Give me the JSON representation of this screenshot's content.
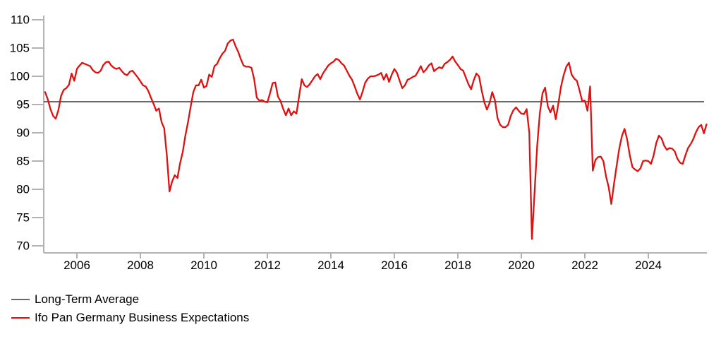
{
  "chart_data": {
    "type": "line",
    "title": "",
    "xlabel": "",
    "ylabel": "",
    "grid": false,
    "legend_position": "bottom-left",
    "x_axis": {
      "tick_years": [
        2006,
        2008,
        2010,
        2012,
        2014,
        2016,
        2018,
        2020,
        2022,
        2024
      ],
      "range_start": "2005-01",
      "range_end": "2025-11"
    },
    "y_axis": {
      "ticks": [
        70,
        75,
        80,
        85,
        90,
        95,
        100,
        105,
        110
      ],
      "ylim": [
        70,
        110
      ]
    },
    "series": [
      {
        "name": "Long-Term Average",
        "type": "constant-line",
        "value": 95.5,
        "color": "#696969"
      },
      {
        "name": "Ifo Pan Germany Business Expectations",
        "type": "monthly-line",
        "color": "#e01010",
        "start_year": 2005,
        "start_month": 1,
        "end_year": 2025,
        "end_month": 11,
        "values": [
          97.2,
          95.9,
          94.2,
          93.0,
          92.5,
          94.0,
          96.5,
          97.6,
          97.9,
          98.5,
          100.5,
          99.2,
          101.3,
          101.9,
          102.4,
          102.2,
          102.0,
          101.8,
          101.1,
          100.7,
          100.6,
          101.0,
          102.0,
          102.5,
          102.6,
          101.9,
          101.5,
          101.3,
          101.5,
          100.9,
          100.4,
          100.2,
          100.8,
          101.0,
          100.4,
          99.8,
          99.1,
          98.4,
          98.2,
          97.4,
          96.2,
          95.1,
          93.9,
          94.3,
          91.9,
          90.8,
          86.0,
          79.6,
          81.4,
          82.5,
          82.0,
          84.6,
          86.6,
          89.5,
          91.9,
          94.6,
          97.2,
          98.4,
          98.4,
          99.4,
          98.0,
          98.3,
          100.3,
          99.9,
          101.8,
          102.2,
          103.2,
          104.0,
          104.5,
          105.8,
          106.3,
          106.5,
          105.3,
          104.3,
          103.0,
          101.9,
          101.7,
          101.7,
          101.5,
          99.5,
          96.2,
          95.7,
          95.8,
          95.5,
          95.4,
          97.0,
          98.8,
          98.9,
          96.4,
          95.6,
          94.2,
          93.1,
          94.3,
          93.1,
          93.8,
          93.4,
          96.5,
          99.5,
          98.4,
          98.1,
          98.6,
          99.3,
          100.0,
          100.4,
          99.5,
          100.5,
          101.2,
          101.9,
          102.3,
          102.6,
          103.1,
          102.9,
          102.3,
          101.9,
          101.0,
          100.1,
          99.4,
          98.2,
          96.9,
          95.9,
          97.3,
          98.9,
          99.6,
          100.0,
          100.0,
          100.1,
          100.3,
          100.6,
          99.4,
          100.4,
          99.0,
          100.3,
          101.3,
          100.6,
          99.2,
          97.9,
          98.4,
          99.4,
          99.6,
          99.9,
          100.1,
          100.9,
          101.8,
          100.7,
          101.2,
          101.9,
          102.3,
          100.9,
          101.3,
          101.6,
          101.4,
          102.2,
          102.5,
          102.9,
          103.5,
          102.6,
          102.0,
          101.3,
          101.0,
          99.8,
          98.6,
          97.7,
          99.3,
          100.5,
          100.0,
          97.5,
          95.4,
          94.1,
          95.3,
          97.2,
          95.8,
          92.6,
          91.4,
          91.0,
          91.0,
          91.4,
          93.0,
          94.0,
          94.5,
          93.9,
          93.4,
          93.3,
          94.2,
          90.0,
          71.2,
          79.5,
          87.8,
          93.5,
          97.0,
          98.0,
          94.7,
          93.6,
          94.8,
          92.4,
          95.2,
          98.2,
          100.2,
          101.7,
          102.4,
          100.3,
          99.6,
          99.2,
          97.5,
          95.6,
          95.7,
          93.9,
          98.2,
          83.3,
          85.2,
          85.7,
          85.8,
          85.0,
          82.3,
          80.4,
          77.4,
          80.9,
          84.1,
          87.2,
          89.4,
          90.7,
          88.8,
          86.0,
          83.9,
          83.5,
          83.2,
          83.7,
          85.0,
          85.1,
          85.0,
          84.5,
          86.0,
          88.2,
          89.5,
          89.0,
          87.7,
          87.0,
          87.3,
          87.2,
          86.7,
          85.4,
          84.7,
          84.5,
          86.0,
          87.3,
          88.0,
          88.9,
          90.1,
          91.0,
          91.4,
          89.9,
          91.5
        ]
      }
    ]
  },
  "colors": {
    "axis": "#b3b3b3",
    "average_line": "#696969",
    "series_line": "#e01010",
    "tick_label": "#000000"
  }
}
